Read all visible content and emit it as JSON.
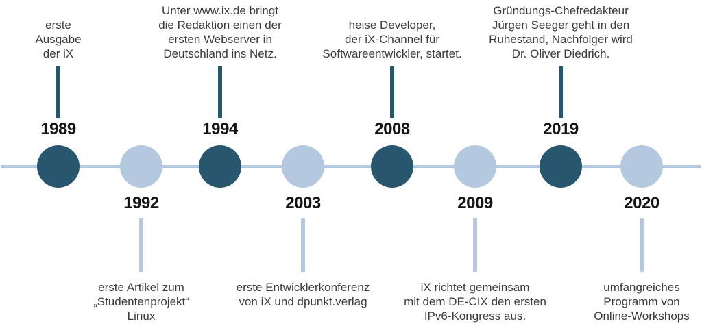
{
  "colors": {
    "dark_accent": "#28566E",
    "light_accent": "#B4C8E0",
    "year_text": "#141414",
    "description_text": "#3C3C3C",
    "background": "#FFFFFF"
  },
  "timeline": {
    "type": "horizontal-timeline",
    "axis_color": "light_accent",
    "events": [
      {
        "year": "1989",
        "side": "above",
        "marker": "dark",
        "lines": [
          "erste",
          "Ausgabe",
          "der iX"
        ]
      },
      {
        "year": "1992",
        "side": "below",
        "marker": "light",
        "lines": [
          "erste Artikel zum",
          "„Studentenprojekt“",
          "Linux"
        ]
      },
      {
        "year": "1994",
        "side": "above",
        "marker": "dark",
        "lines": [
          "Unter www.ix.de bringt",
          "die Redaktion einen der",
          "ersten Webserver in",
          "Deutschland ins Netz."
        ]
      },
      {
        "year": "2003",
        "side": "below",
        "marker": "light",
        "lines": [
          "erste Entwicklerkonferenz",
          "von iX und dpunkt.verlag"
        ]
      },
      {
        "year": "2008",
        "side": "above",
        "marker": "dark",
        "lines": [
          "heise Developer,",
          "der iX-Channel für",
          "Softwareentwickler, startet."
        ]
      },
      {
        "year": "2009",
        "side": "below",
        "marker": "light",
        "lines": [
          "iX richtet gemeinsam",
          "mit dem DE-CIX den ersten",
          "IPv6-Kongress aus."
        ]
      },
      {
        "year": "2019",
        "side": "above",
        "marker": "dark",
        "lines": [
          "Gründungs-Chefredakteur",
          "Jürgen Seeger geht in den",
          "Ruhestand, Nachfolger wird",
          "Dr. Oliver Diedrich."
        ]
      },
      {
        "year": "2020",
        "side": "below",
        "marker": "light",
        "lines": [
          "umfangreiches",
          "Programm von",
          "Online-Workshops"
        ]
      }
    ]
  }
}
